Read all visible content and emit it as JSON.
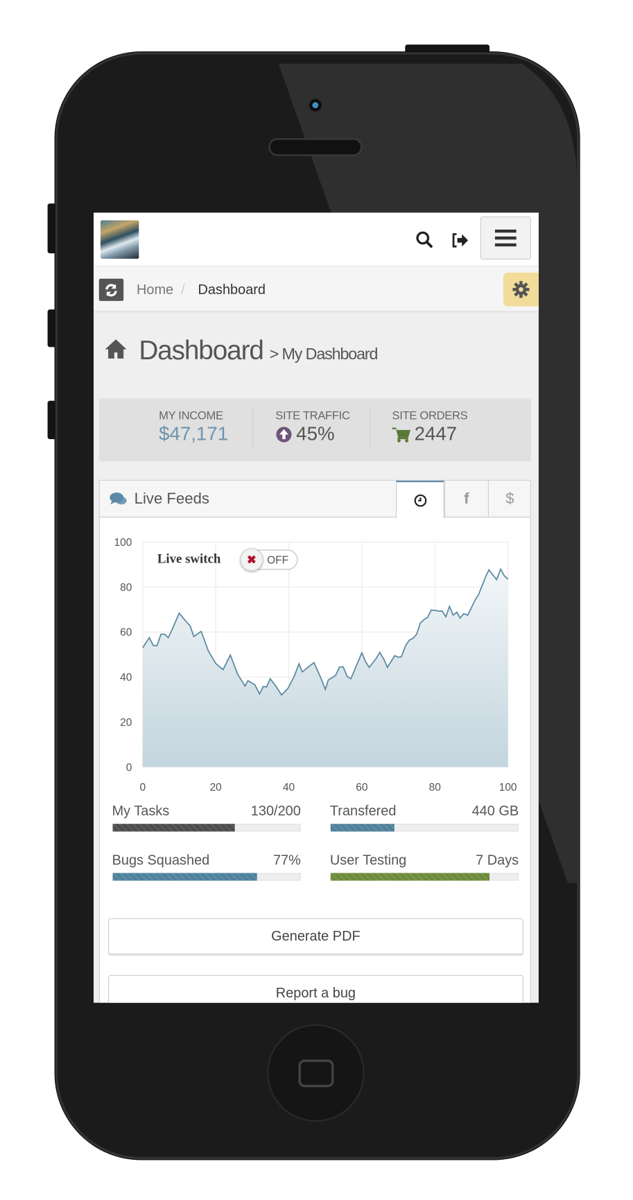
{
  "header": {
    "logo": "site-logo",
    "search_icon": "search-icon",
    "logout_icon": "logout-icon",
    "menu_icon": "hamburger-icon"
  },
  "breadcrumb": {
    "items": [
      "Home",
      "Dashboard"
    ],
    "separator": "/",
    "refresh_icon": "refresh-icon",
    "settings_icon": "gear-icon"
  },
  "page": {
    "title": "Dashboard",
    "subtitle": "> My Dashboard"
  },
  "stats": [
    {
      "label": "MY INCOME",
      "value": "$47,171",
      "color": "#6e93ad"
    },
    {
      "label": "SITE TRAFFIC",
      "value": "45%",
      "icon": "arrow-up-circle-icon",
      "color": "#6e5478"
    },
    {
      "label": "SITE ORDERS",
      "value": "2447",
      "icon": "cart-icon",
      "color": "#5a7a3a"
    }
  ],
  "widget": {
    "title": "Live Feeds",
    "tabs": [
      {
        "icon": "clock-icon",
        "active": true
      },
      {
        "label": "f",
        "icon": "facebook-icon"
      },
      {
        "label": "$",
        "icon": "dollar-icon"
      }
    ],
    "live_switch": {
      "label": "Live switch",
      "state": "OFF"
    }
  },
  "chart_data": {
    "type": "area",
    "xlim": [
      0,
      100
    ],
    "ylim": [
      0,
      100
    ],
    "xticks": [
      0,
      20,
      40,
      60,
      80,
      100
    ],
    "yticks": [
      0,
      20,
      40,
      60,
      80,
      100
    ],
    "grid": true,
    "color": "#5b8aa3",
    "x": [
      0,
      1.8,
      2.9,
      3.9,
      5,
      6,
      7,
      8,
      10,
      11.7,
      13,
      14,
      16,
      18,
      20,
      22,
      24,
      26,
      26.6,
      28,
      28.8,
      30.7,
      32,
      33,
      33.9,
      34.9,
      36.5,
      38,
      39.8,
      41.5,
      42.8,
      43.7,
      44.8,
      46.9,
      48.8,
      50,
      50.8,
      52.8,
      53.9,
      54.9,
      56,
      57,
      60,
      61,
      62,
      63.8,
      64.9,
      66,
      67,
      69,
      70,
      70.8,
      72,
      73,
      74,
      75,
      76,
      77.2,
      78,
      79,
      80.3,
      81,
      82,
      83,
      84,
      85,
      86,
      86.9,
      87.9,
      89,
      91,
      92,
      94,
      94.8,
      96.9,
      98,
      99,
      100
    ],
    "y": [
      53,
      57.5,
      54,
      54,
      59,
      59,
      57.5,
      61,
      68.4,
      65,
      62.7,
      58,
      60.3,
      51.5,
      46,
      43.3,
      49.8,
      41.2,
      39.7,
      36,
      38.4,
      36.6,
      32.5,
      35.8,
      35.6,
      39.2,
      35.9,
      32,
      35,
      40.4,
      45.9,
      42.3,
      43.8,
      46.4,
      39.5,
      34.5,
      38.7,
      40.7,
      44.5,
      44.5,
      40.2,
      39.2,
      50.8,
      46.9,
      44.3,
      48,
      51,
      48,
      44.3,
      49.5,
      48.8,
      49,
      54,
      56.4,
      57.2,
      59,
      64,
      65.8,
      66.5,
      69.8,
      69.6,
      69.3,
      69.4,
      66.8,
      71.4,
      67.5,
      68.8,
      66.2,
      68.2,
      67.5,
      74.2,
      76.8,
      85,
      87.6,
      83.3,
      88,
      85,
      83.5
    ]
  },
  "progress": [
    {
      "label": "My Tasks",
      "value": "130/200",
      "fraction": 0.65,
      "color": "#4a4a4a"
    },
    {
      "label": "Transfered",
      "value": "440 GB",
      "fraction": 0.34,
      "color": "#4d809b"
    },
    {
      "label": "Bugs Squashed",
      "value": "77%",
      "fraction": 0.77,
      "color": "#4d809b"
    },
    {
      "label": "User Testing",
      "value": "7 Days",
      "fraction": 0.85,
      "color": "#6b8a3a"
    }
  ],
  "buttons": {
    "pdf": "Generate PDF",
    "bug": "Report a bug"
  }
}
